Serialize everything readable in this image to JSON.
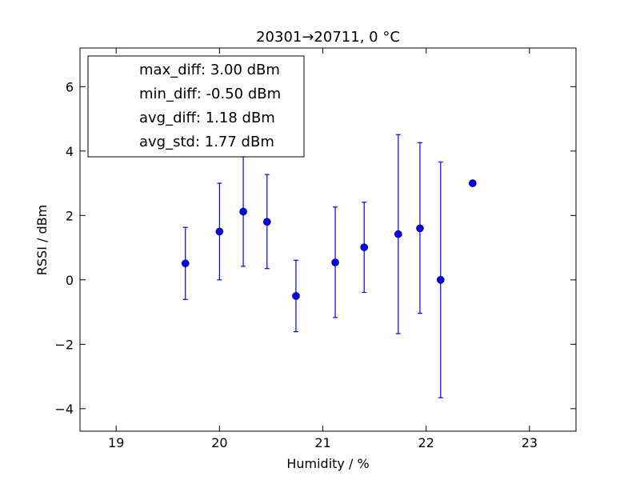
{
  "chart_data": {
    "type": "scatter",
    "title": "20301→20711, 0 °C",
    "xlabel": "Humidity / %",
    "ylabel": "RSSI / dBm",
    "xlim": [
      18.65,
      23.45
    ],
    "ylim": [
      -4.7,
      7.2
    ],
    "xticks": [
      19,
      20,
      21,
      22,
      23
    ],
    "yticks": [
      -4,
      -2,
      0,
      2,
      4,
      6
    ],
    "xtick_labels": [
      "19",
      "20",
      "21",
      "22",
      "23"
    ],
    "ytick_labels": [
      "−4",
      "−2",
      "0",
      "2",
      "4",
      "6"
    ],
    "grid": false,
    "legend_position": "top-left",
    "legend": [
      "max_diff: 3.00 dBm",
      "min_diff: -0.50 dBm",
      "avg_diff: 1.18 dBm",
      "avg_std: 1.77 dBm"
    ],
    "series": [
      {
        "color": "#0000ff",
        "points": [
          {
            "x": 19.67,
            "y": 0.51,
            "yerr_low": -0.61,
            "yerr_high": 1.63
          },
          {
            "x": 20.0,
            "y": 1.5,
            "yerr_low": 0.0,
            "yerr_high": 3.0
          },
          {
            "x": 20.23,
            "y": 2.12,
            "yerr_low": 0.42,
            "yerr_high": 3.82
          },
          {
            "x": 20.46,
            "y": 1.8,
            "yerr_low": 0.35,
            "yerr_high": 3.27
          },
          {
            "x": 20.74,
            "y": -0.5,
            "yerr_low": -1.61,
            "yerr_high": 0.61
          },
          {
            "x": 21.12,
            "y": 0.54,
            "yerr_low": -1.17,
            "yerr_high": 2.26
          },
          {
            "x": 21.4,
            "y": 1.01,
            "yerr_low": -0.39,
            "yerr_high": 2.41
          },
          {
            "x": 21.73,
            "y": 1.42,
            "yerr_low": -1.67,
            "yerr_high": 4.51
          },
          {
            "x": 21.94,
            "y": 1.6,
            "yerr_low": -1.04,
            "yerr_high": 4.26
          },
          {
            "x": 22.14,
            "y": 0.0,
            "yerr_low": -3.66,
            "yerr_high": 3.66
          },
          {
            "x": 22.45,
            "y": 3.0
          }
        ]
      }
    ]
  }
}
